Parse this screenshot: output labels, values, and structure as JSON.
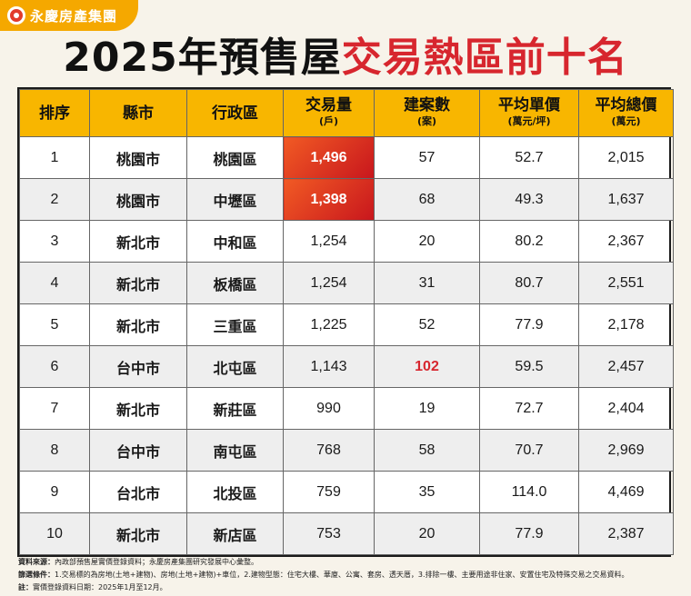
{
  "brand": {
    "name": "永慶房產集團",
    "logo_icon": "yungching-logo-icon"
  },
  "headline": {
    "black": "2025年預售屋",
    "red": "交易熱區前十名"
  },
  "colors": {
    "header_bg": "#f8b600",
    "accent_red": "#d7262e",
    "hot_cell": "#e0301f"
  },
  "table": {
    "headers": [
      {
        "label": "排序",
        "sub": ""
      },
      {
        "label": "縣市",
        "sub": ""
      },
      {
        "label": "行政區",
        "sub": ""
      },
      {
        "label": "交易量",
        "sub": "(戶)"
      },
      {
        "label": "建案數",
        "sub": "(案)"
      },
      {
        "label": "平均單價",
        "sub": "(萬元/坪)"
      },
      {
        "label": "平均總價",
        "sub": "(萬元)"
      }
    ],
    "rows": [
      {
        "rank": "1",
        "city": "桃園市",
        "district": "桃園區",
        "volume": "1,496",
        "projects": "57",
        "unit_price": "52.7",
        "total_price": "2,015"
      },
      {
        "rank": "2",
        "city": "桃園市",
        "district": "中壢區",
        "volume": "1,398",
        "projects": "68",
        "unit_price": "49.3",
        "total_price": "1,637"
      },
      {
        "rank": "3",
        "city": "新北市",
        "district": "中和區",
        "volume": "1,254",
        "projects": "20",
        "unit_price": "80.2",
        "total_price": "2,367"
      },
      {
        "rank": "4",
        "city": "新北市",
        "district": "板橋區",
        "volume": "1,254",
        "projects": "31",
        "unit_price": "80.7",
        "total_price": "2,551"
      },
      {
        "rank": "5",
        "city": "新北市",
        "district": "三重區",
        "volume": "1,225",
        "projects": "52",
        "unit_price": "77.9",
        "total_price": "2,178"
      },
      {
        "rank": "6",
        "city": "台中市",
        "district": "北屯區",
        "volume": "1,143",
        "projects": "102",
        "unit_price": "59.5",
        "total_price": "2,457"
      },
      {
        "rank": "7",
        "city": "新北市",
        "district": "新莊區",
        "volume": "990",
        "projects": "19",
        "unit_price": "72.7",
        "total_price": "2,404"
      },
      {
        "rank": "8",
        "city": "台中市",
        "district": "南屯區",
        "volume": "768",
        "projects": "58",
        "unit_price": "70.7",
        "total_price": "2,969"
      },
      {
        "rank": "9",
        "city": "台北市",
        "district": "北投區",
        "volume": "759",
        "projects": "35",
        "unit_price": "114.0",
        "total_price": "4,469"
      },
      {
        "rank": "10",
        "city": "新北市",
        "district": "新店區",
        "volume": "753",
        "projects": "20",
        "unit_price": "77.9",
        "total_price": "2,387"
      }
    ]
  },
  "notes": {
    "source_label": "資料來源：",
    "source_text": "內政部預售屋實價登錄資料；永慶房產集團研究發展中心彙整。",
    "filter_label": "篩選條件：",
    "filter_text": "1.交易標的為房地(土地+建物)、房地(土地+建物)+車位，2.建物型態：住宅大樓、華廈、公寓、套房、透天厝，3.排除一樓、主要用途非住家、安置住宅及特殊交易之交易資料。",
    "note_label": "註：",
    "note_text": "實價登錄資料日期：2025年1月至12月。"
  }
}
